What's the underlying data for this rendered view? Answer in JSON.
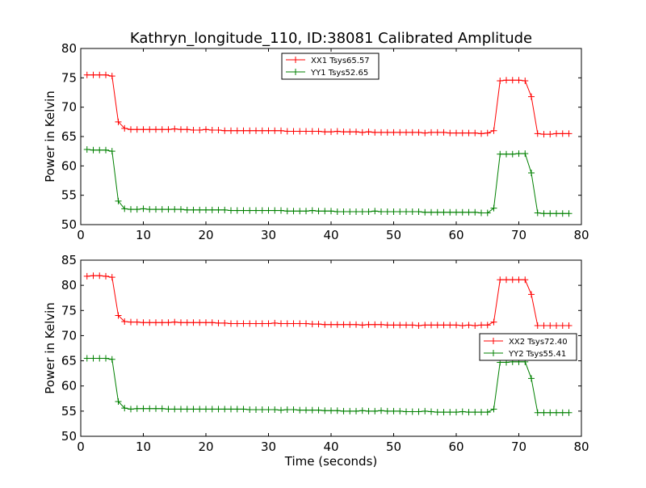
{
  "chart_data": [
    {
      "type": "line",
      "title": "Kathryn_longitude_110, ID:38081 Calibrated Amplitude",
      "xlabel": "",
      "ylabel": "Power in Kelvin",
      "xlim": [
        0,
        80
      ],
      "ylim": [
        50,
        80
      ],
      "xticks": [
        "0",
        "10",
        "20",
        "30",
        "40",
        "50",
        "60",
        "70",
        "80"
      ],
      "yticks": [
        "50",
        "55",
        "60",
        "65",
        "70",
        "75",
        "80"
      ],
      "legend_position": "top-center",
      "grid": false,
      "x": [
        1,
        2,
        3,
        4,
        5,
        6,
        7,
        8,
        9,
        10,
        11,
        12,
        13,
        14,
        15,
        16,
        17,
        18,
        19,
        20,
        21,
        22,
        23,
        24,
        25,
        26,
        27,
        28,
        29,
        30,
        31,
        32,
        33,
        34,
        35,
        36,
        37,
        38,
        39,
        40,
        41,
        42,
        43,
        44,
        45,
        46,
        47,
        48,
        49,
        50,
        51,
        52,
        53,
        54,
        55,
        56,
        57,
        58,
        59,
        60,
        61,
        62,
        63,
        64,
        65,
        66,
        67,
        68,
        69,
        70,
        71,
        72,
        73,
        74,
        75,
        76,
        77,
        78
      ],
      "series": [
        {
          "name": "XX1 Tsys65.57",
          "color": "#ff0000",
          "values": [
            75.5,
            75.5,
            75.5,
            75.5,
            75.3,
            67.5,
            66.4,
            66.2,
            66.2,
            66.2,
            66.2,
            66.2,
            66.2,
            66.2,
            66.3,
            66.2,
            66.2,
            66.1,
            66.1,
            66.2,
            66.1,
            66.1,
            66.0,
            66.0,
            66.0,
            66.0,
            66.0,
            66.0,
            66.0,
            66.0,
            66.0,
            66.0,
            65.9,
            65.9,
            65.9,
            65.9,
            65.9,
            65.9,
            65.8,
            65.8,
            65.9,
            65.8,
            65.8,
            65.8,
            65.7,
            65.8,
            65.7,
            65.7,
            65.7,
            65.7,
            65.7,
            65.7,
            65.7,
            65.7,
            65.6,
            65.7,
            65.7,
            65.7,
            65.6,
            65.6,
            65.6,
            65.6,
            65.6,
            65.5,
            65.6,
            66.0,
            74.5,
            74.6,
            74.6,
            74.6,
            74.5,
            71.8,
            65.5,
            65.4,
            65.4,
            65.5,
            65.5,
            65.5
          ]
        },
        {
          "name": "YY1 Tsys52.65",
          "color": "#008000",
          "values": [
            62.8,
            62.7,
            62.7,
            62.7,
            62.5,
            54.0,
            52.7,
            52.6,
            52.6,
            52.7,
            52.6,
            52.6,
            52.6,
            52.6,
            52.6,
            52.6,
            52.5,
            52.5,
            52.5,
            52.5,
            52.5,
            52.5,
            52.5,
            52.4,
            52.4,
            52.4,
            52.4,
            52.4,
            52.4,
            52.4,
            52.4,
            52.4,
            52.3,
            52.3,
            52.3,
            52.3,
            52.4,
            52.3,
            52.3,
            52.3,
            52.2,
            52.2,
            52.2,
            52.2,
            52.2,
            52.2,
            52.3,
            52.2,
            52.2,
            52.2,
            52.2,
            52.2,
            52.2,
            52.2,
            52.1,
            52.1,
            52.1,
            52.1,
            52.1,
            52.1,
            52.1,
            52.1,
            52.1,
            52.0,
            52.0,
            52.8,
            62.0,
            62.0,
            62.0,
            62.1,
            62.1,
            58.8,
            52.0,
            51.9,
            51.9,
            51.9,
            51.9,
            51.9
          ]
        }
      ]
    },
    {
      "type": "line",
      "title": "",
      "xlabel": "Time (seconds)",
      "ylabel": "Power in Kelvin",
      "xlim": [
        0,
        80
      ],
      "ylim": [
        50,
        85
      ],
      "xticks": [
        "0",
        "10",
        "20",
        "30",
        "40",
        "50",
        "60",
        "70",
        "80"
      ],
      "yticks": [
        "50",
        "55",
        "60",
        "65",
        "70",
        "75",
        "80",
        "85"
      ],
      "legend_position": "center-right",
      "grid": false,
      "x": [
        1,
        2,
        3,
        4,
        5,
        6,
        7,
        8,
        9,
        10,
        11,
        12,
        13,
        14,
        15,
        16,
        17,
        18,
        19,
        20,
        21,
        22,
        23,
        24,
        25,
        26,
        27,
        28,
        29,
        30,
        31,
        32,
        33,
        34,
        35,
        36,
        37,
        38,
        39,
        40,
        41,
        42,
        43,
        44,
        45,
        46,
        47,
        48,
        49,
        50,
        51,
        52,
        53,
        54,
        55,
        56,
        57,
        58,
        59,
        60,
        61,
        62,
        63,
        64,
        65,
        66,
        67,
        68,
        69,
        70,
        71,
        72,
        73,
        74,
        75,
        76,
        77,
        78
      ],
      "series": [
        {
          "name": "XX2 Tsys72.40",
          "color": "#ff0000",
          "values": [
            81.8,
            81.9,
            81.9,
            81.8,
            81.6,
            74.0,
            72.8,
            72.7,
            72.7,
            72.6,
            72.6,
            72.6,
            72.6,
            72.6,
            72.7,
            72.6,
            72.6,
            72.6,
            72.6,
            72.6,
            72.6,
            72.5,
            72.5,
            72.4,
            72.4,
            72.4,
            72.4,
            72.4,
            72.4,
            72.4,
            72.5,
            72.4,
            72.4,
            72.4,
            72.4,
            72.4,
            72.3,
            72.3,
            72.2,
            72.2,
            72.2,
            72.2,
            72.2,
            72.2,
            72.1,
            72.2,
            72.2,
            72.2,
            72.1,
            72.1,
            72.1,
            72.1,
            72.1,
            72.0,
            72.1,
            72.1,
            72.1,
            72.1,
            72.1,
            72.1,
            72.0,
            72.1,
            72.0,
            72.1,
            72.1,
            72.7,
            81.1,
            81.1,
            81.1,
            81.1,
            81.1,
            78.2,
            72.0,
            72.0,
            72.0,
            72.0,
            72.0,
            72.0
          ]
        },
        {
          "name": "YY2 Tsys55.41",
          "color": "#008000",
          "values": [
            65.5,
            65.5,
            65.5,
            65.5,
            65.3,
            56.9,
            55.6,
            55.4,
            55.5,
            55.5,
            55.5,
            55.5,
            55.5,
            55.4,
            55.4,
            55.4,
            55.4,
            55.4,
            55.4,
            55.4,
            55.4,
            55.4,
            55.4,
            55.4,
            55.4,
            55.4,
            55.3,
            55.3,
            55.3,
            55.3,
            55.3,
            55.2,
            55.3,
            55.3,
            55.2,
            55.2,
            55.2,
            55.2,
            55.1,
            55.1,
            55.1,
            55.0,
            55.0,
            55.0,
            55.1,
            55.0,
            55.0,
            55.1,
            55.0,
            55.0,
            55.0,
            54.9,
            54.9,
            54.9,
            55.0,
            54.9,
            54.8,
            54.8,
            54.8,
            54.8,
            54.9,
            54.8,
            54.8,
            54.8,
            54.8,
            55.4,
            64.7,
            64.7,
            64.8,
            64.8,
            64.8,
            61.5,
            54.7,
            54.7,
            54.7,
            54.7,
            54.7,
            54.7
          ]
        }
      ]
    }
  ]
}
